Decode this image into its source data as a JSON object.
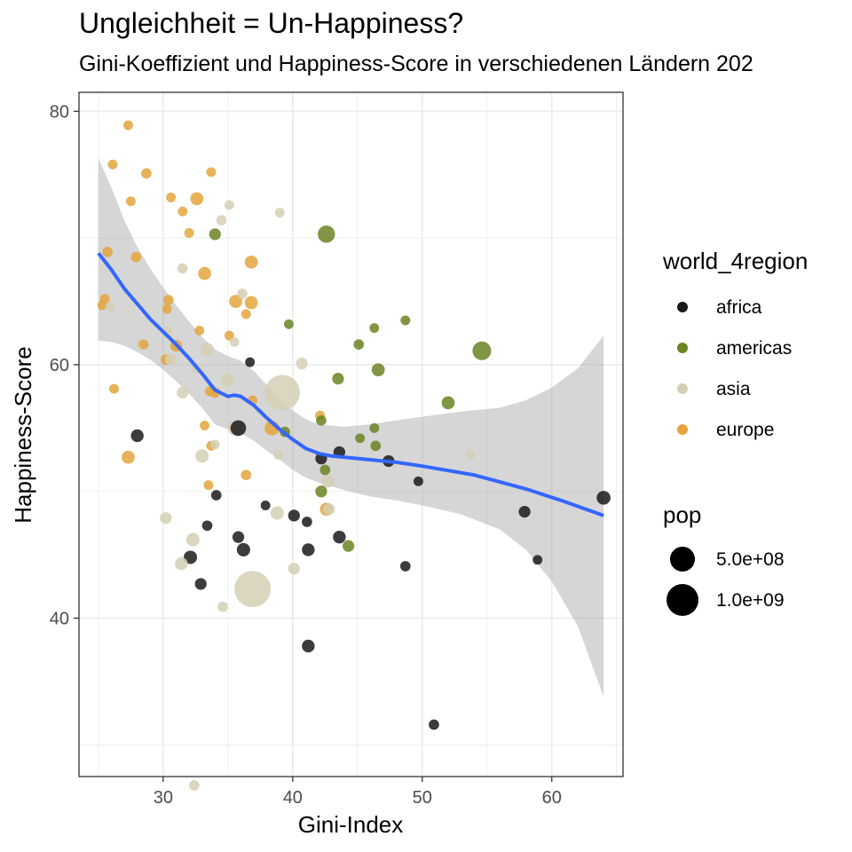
{
  "chart_data": {
    "type": "scatter",
    "title": "Ungleichheit = Un-Happiness?",
    "subtitle": "Gini-Koeffizient und Happiness-Score in verschiedenen Ländern 202",
    "xlabel": "Gini-Index",
    "ylabel": "Happiness-Score",
    "xlim": [
      23.5,
      65.5
    ],
    "ylim": [
      27.5,
      81.5
    ],
    "x_ticks": [
      30,
      40,
      50,
      60
    ],
    "y_ticks": [
      40,
      60,
      80
    ],
    "grid": true,
    "legend_position": "right",
    "color_legend": {
      "title": "world_4region",
      "entries": [
        {
          "label": "africa",
          "color": "#1a1a1a"
        },
        {
          "label": "americas",
          "color": "#6b8423"
        },
        {
          "label": "asia",
          "color": "#d4cfb4"
        },
        {
          "label": "europe",
          "color": "#e3a43c"
        }
      ]
    },
    "size_legend": {
      "title": "pop",
      "entries": [
        {
          "label": "5.0e+08",
          "value": 500000000
        },
        {
          "label": "1.0e+09",
          "value": 1000000000
        }
      ]
    },
    "trend_line": {
      "method": "loess",
      "color": "#3366ff",
      "points": [
        [
          25,
          68.8
        ],
        [
          26,
          67.5
        ],
        [
          27,
          66.0
        ],
        [
          28,
          64.8
        ],
        [
          29,
          63.6
        ],
        [
          30,
          62.6
        ],
        [
          31,
          61.6
        ],
        [
          32,
          60.5
        ],
        [
          33,
          59.3
        ],
        [
          34,
          58.0
        ],
        [
          35,
          57.5
        ],
        [
          35.5,
          57.6
        ],
        [
          36,
          57.5
        ],
        [
          37,
          56.8
        ],
        [
          38,
          55.8
        ],
        [
          39,
          54.9
        ],
        [
          40,
          54.1
        ],
        [
          41,
          53.4
        ],
        [
          42,
          53.0
        ],
        [
          43,
          52.8
        ],
        [
          45,
          52.6
        ],
        [
          48,
          52.3
        ],
        [
          50,
          52.0
        ],
        [
          54,
          51.3
        ],
        [
          58,
          50.2
        ],
        [
          61,
          49.2
        ],
        [
          64,
          48.1
        ]
      ],
      "ci_upper": [
        [
          25,
          76.3
        ],
        [
          26,
          74.0
        ],
        [
          27,
          71.4
        ],
        [
          28,
          69.3
        ],
        [
          29,
          67.6
        ],
        [
          30,
          66.1
        ],
        [
          31,
          64.7
        ],
        [
          32,
          63.4
        ],
        [
          33,
          62.2
        ],
        [
          34,
          61.2
        ],
        [
          35,
          60.7
        ],
        [
          36,
          60.3
        ],
        [
          37,
          59.5
        ],
        [
          38,
          58.4
        ],
        [
          39,
          57.3
        ],
        [
          40,
          56.4
        ],
        [
          41,
          55.7
        ],
        [
          42,
          55.3
        ],
        [
          44,
          55.1
        ],
        [
          46,
          55.3
        ],
        [
          48,
          55.6
        ],
        [
          50,
          55.9
        ],
        [
          53,
          56.3
        ],
        [
          56,
          56.6
        ],
        [
          58,
          57.2
        ],
        [
          60,
          58.2
        ],
        [
          62,
          59.7
        ],
        [
          64,
          62.3
        ]
      ],
      "ci_lower": [
        [
          25,
          61.9
        ],
        [
          26,
          61.8
        ],
        [
          27,
          61.5
        ],
        [
          28,
          61.0
        ],
        [
          29,
          60.4
        ],
        [
          30,
          59.6
        ],
        [
          31,
          58.7
        ],
        [
          32,
          57.7
        ],
        [
          33,
          56.6
        ],
        [
          34,
          55.3
        ],
        [
          35,
          54.9
        ],
        [
          36,
          54.6
        ],
        [
          37,
          54.0
        ],
        [
          38,
          53.2
        ],
        [
          39,
          52.5
        ],
        [
          40,
          51.7
        ],
        [
          41,
          51.1
        ],
        [
          42,
          50.7
        ],
        [
          44,
          50.1
        ],
        [
          46,
          49.6
        ],
        [
          48,
          49.3
        ],
        [
          50,
          48.9
        ],
        [
          53,
          48.2
        ],
        [
          56,
          47.0
        ],
        [
          58,
          45.4
        ],
        [
          60,
          42.9
        ],
        [
          62,
          39.4
        ],
        [
          64,
          33.8
        ]
      ]
    },
    "points": [
      {
        "x": 27.3,
        "y": 78.9,
        "region": "europe",
        "pop": 5000000
      },
      {
        "x": 26.1,
        "y": 75.8,
        "region": "europe",
        "pop": 5000000
      },
      {
        "x": 28.7,
        "y": 75.1,
        "region": "europe",
        "pop": 10000000
      },
      {
        "x": 33.7,
        "y": 75.2,
        "region": "europe",
        "pop": 5000000
      },
      {
        "x": 27.5,
        "y": 72.9,
        "region": "europe",
        "pop": 5000000
      },
      {
        "x": 30.6,
        "y": 73.2,
        "region": "europe",
        "pop": 5000000
      },
      {
        "x": 32.6,
        "y": 73.1,
        "region": "europe",
        "pop": 45000000
      },
      {
        "x": 35.1,
        "y": 72.6,
        "region": "asia",
        "pop": 5000000
      },
      {
        "x": 31.5,
        "y": 72.1,
        "region": "europe",
        "pop": 5000000
      },
      {
        "x": 39.0,
        "y": 72.0,
        "region": "asia",
        "pop": 5000000
      },
      {
        "x": 34.5,
        "y": 71.4,
        "region": "asia",
        "pop": 10000000
      },
      {
        "x": 32.0,
        "y": 70.4,
        "region": "europe",
        "pop": 5000000
      },
      {
        "x": 34.0,
        "y": 70.3,
        "region": "americas",
        "pop": 25000000
      },
      {
        "x": 42.6,
        "y": 70.3,
        "region": "americas",
        "pop": 150000000
      },
      {
        "x": 25.7,
        "y": 68.9,
        "region": "europe",
        "pop": 10000000
      },
      {
        "x": 27.9,
        "y": 68.5,
        "region": "europe",
        "pop": 10000000
      },
      {
        "x": 36.8,
        "y": 68.1,
        "region": "europe",
        "pop": 45000000
      },
      {
        "x": 31.5,
        "y": 67.6,
        "region": "asia",
        "pop": 10000000
      },
      {
        "x": 33.2,
        "y": 67.2,
        "region": "europe",
        "pop": 45000000
      },
      {
        "x": 25.5,
        "y": 65.2,
        "region": "europe",
        "pop": 5000000
      },
      {
        "x": 25.3,
        "y": 64.7,
        "region": "europe",
        "pop": 5000000
      },
      {
        "x": 25.9,
        "y": 64.6,
        "region": "asia",
        "pop": 5000000
      },
      {
        "x": 30.4,
        "y": 65.1,
        "region": "europe",
        "pop": 10000000
      },
      {
        "x": 30.3,
        "y": 64.4,
        "region": "europe",
        "pop": 5000000
      },
      {
        "x": 35.6,
        "y": 65.0,
        "region": "europe",
        "pop": 45000000
      },
      {
        "x": 36.1,
        "y": 65.6,
        "region": "asia",
        "pop": 10000000
      },
      {
        "x": 36.8,
        "y": 64.9,
        "region": "europe",
        "pop": 45000000
      },
      {
        "x": 36.4,
        "y": 64.0,
        "region": "europe",
        "pop": 5000000
      },
      {
        "x": 39.7,
        "y": 63.2,
        "region": "americas",
        "pop": 5000000
      },
      {
        "x": 46.3,
        "y": 62.9,
        "region": "americas",
        "pop": 5000000
      },
      {
        "x": 48.7,
        "y": 63.5,
        "region": "americas",
        "pop": 5000000
      },
      {
        "x": 30.3,
        "y": 62.6,
        "region": "asia",
        "pop": 10000000
      },
      {
        "x": 32.8,
        "y": 62.7,
        "region": "europe",
        "pop": 5000000
      },
      {
        "x": 35.1,
        "y": 62.3,
        "region": "europe",
        "pop": 5000000
      },
      {
        "x": 35.5,
        "y": 61.8,
        "region": "asia",
        "pop": 5000000
      },
      {
        "x": 28.3,
        "y": 61.6,
        "region": "asia",
        "pop": 10000000
      },
      {
        "x": 28.5,
        "y": 61.6,
        "region": "europe",
        "pop": 5000000
      },
      {
        "x": 31.0,
        "y": 61.5,
        "region": "europe",
        "pop": 25000000
      },
      {
        "x": 33.4,
        "y": 61.2,
        "region": "asia",
        "pop": 50000000
      },
      {
        "x": 45.1,
        "y": 61.6,
        "region": "americas",
        "pop": 10000000
      },
      {
        "x": 54.6,
        "y": 61.1,
        "region": "americas",
        "pop": 200000000
      },
      {
        "x": 30.2,
        "y": 60.4,
        "region": "europe",
        "pop": 10000000
      },
      {
        "x": 30.6,
        "y": 60.4,
        "region": "asia",
        "pop": 25000000
      },
      {
        "x": 36.7,
        "y": 60.2,
        "region": "africa",
        "pop": 5000000
      },
      {
        "x": 40.7,
        "y": 60.1,
        "region": "asia",
        "pop": 25000000
      },
      {
        "x": 46.6,
        "y": 59.6,
        "region": "americas",
        "pop": 45000000
      },
      {
        "x": 32.6,
        "y": 59.7,
        "region": "asia",
        "pop": 10000000
      },
      {
        "x": 43.5,
        "y": 58.9,
        "region": "americas",
        "pop": 25000000
      },
      {
        "x": 26.2,
        "y": 58.1,
        "region": "europe",
        "pop": 5000000
      },
      {
        "x": 31.5,
        "y": 57.8,
        "region": "asia",
        "pop": 25000000
      },
      {
        "x": 33.6,
        "y": 57.9,
        "region": "europe",
        "pop": 5000000
      },
      {
        "x": 34.0,
        "y": 57.8,
        "region": "europe",
        "pop": 10000000
      },
      {
        "x": 35.0,
        "y": 58.8,
        "region": "asia",
        "pop": 40000000
      },
      {
        "x": 39.2,
        "y": 57.8,
        "region": "asia",
        "pop": 1300000000
      },
      {
        "x": 36.9,
        "y": 57.2,
        "region": "europe",
        "pop": 5000000
      },
      {
        "x": 42.1,
        "y": 56.0,
        "region": "europe",
        "pop": 5000000
      },
      {
        "x": 42.2,
        "y": 55.6,
        "region": "americas",
        "pop": 10000000
      },
      {
        "x": 52.0,
        "y": 57.0,
        "region": "americas",
        "pop": 45000000
      },
      {
        "x": 33.2,
        "y": 55.2,
        "region": "europe",
        "pop": 5000000
      },
      {
        "x": 35.6,
        "y": 55.0,
        "region": "asia",
        "pop": 100000000
      },
      {
        "x": 35.8,
        "y": 55.0,
        "region": "africa",
        "pop": 100000000
      },
      {
        "x": 38.4,
        "y": 55.0,
        "region": "europe",
        "pop": 80000000
      },
      {
        "x": 39.4,
        "y": 54.7,
        "region": "americas",
        "pop": 10000000
      },
      {
        "x": 28.0,
        "y": 54.4,
        "region": "africa",
        "pop": 40000000
      },
      {
        "x": 33.7,
        "y": 53.6,
        "region": "europe",
        "pop": 5000000
      },
      {
        "x": 34.0,
        "y": 53.7,
        "region": "asia",
        "pop": 5000000
      },
      {
        "x": 45.2,
        "y": 54.2,
        "region": "americas",
        "pop": 5000000
      },
      {
        "x": 46.3,
        "y": 55.0,
        "region": "americas",
        "pop": 5000000
      },
      {
        "x": 46.4,
        "y": 53.6,
        "region": "americas",
        "pop": 10000000
      },
      {
        "x": 43.6,
        "y": 53.1,
        "region": "africa",
        "pop": 25000000
      },
      {
        "x": 53.7,
        "y": 52.9,
        "region": "asia",
        "pop": 5000000
      },
      {
        "x": 27.3,
        "y": 52.7,
        "region": "europe",
        "pop": 45000000
      },
      {
        "x": 33.0,
        "y": 52.8,
        "region": "asia",
        "pop": 50000000
      },
      {
        "x": 38.9,
        "y": 52.9,
        "region": "asia",
        "pop": 5000000
      },
      {
        "x": 42.2,
        "y": 52.6,
        "region": "africa",
        "pop": 25000000
      },
      {
        "x": 47.4,
        "y": 52.4,
        "region": "africa",
        "pop": 25000000
      },
      {
        "x": 42.5,
        "y": 51.7,
        "region": "americas",
        "pop": 10000000
      },
      {
        "x": 36.4,
        "y": 51.3,
        "region": "europe",
        "pop": 10000000
      },
      {
        "x": 42.7,
        "y": 50.8,
        "region": "asia",
        "pop": 40000000
      },
      {
        "x": 49.7,
        "y": 50.8,
        "region": "africa",
        "pop": 5000000
      },
      {
        "x": 33.5,
        "y": 50.5,
        "region": "europe",
        "pop": 5000000
      },
      {
        "x": 34.1,
        "y": 49.7,
        "region": "africa",
        "pop": 10000000
      },
      {
        "x": 42.2,
        "y": 50.0,
        "region": "americas",
        "pop": 25000000
      },
      {
        "x": 64.0,
        "y": 49.5,
        "region": "africa",
        "pop": 60000000
      },
      {
        "x": 37.9,
        "y": 48.9,
        "region": "africa",
        "pop": 5000000
      },
      {
        "x": 42.6,
        "y": 48.6,
        "region": "europe",
        "pop": 45000000
      },
      {
        "x": 42.8,
        "y": 48.6,
        "region": "asia",
        "pop": 25000000
      },
      {
        "x": 38.8,
        "y": 48.3,
        "region": "asia",
        "pop": 50000000
      },
      {
        "x": 30.2,
        "y": 47.9,
        "region": "asia",
        "pop": 25000000
      },
      {
        "x": 40.1,
        "y": 48.1,
        "region": "africa",
        "pop": 25000000
      },
      {
        "x": 41.1,
        "y": 47.6,
        "region": "africa",
        "pop": 10000000
      },
      {
        "x": 57.9,
        "y": 48.4,
        "region": "africa",
        "pop": 25000000
      },
      {
        "x": 33.4,
        "y": 47.3,
        "region": "africa",
        "pop": 10000000
      },
      {
        "x": 32.3,
        "y": 46.2,
        "region": "asia",
        "pop": 50000000
      },
      {
        "x": 35.8,
        "y": 46.4,
        "region": "africa",
        "pop": 25000000
      },
      {
        "x": 43.6,
        "y": 46.4,
        "region": "africa",
        "pop": 40000000
      },
      {
        "x": 36.2,
        "y": 45.4,
        "region": "africa",
        "pop": 50000000
      },
      {
        "x": 41.2,
        "y": 45.4,
        "region": "africa",
        "pop": 40000000
      },
      {
        "x": 44.3,
        "y": 45.7,
        "region": "americas",
        "pop": 25000000
      },
      {
        "x": 32.1,
        "y": 44.8,
        "region": "africa",
        "pop": 50000000
      },
      {
        "x": 31.4,
        "y": 44.3,
        "region": "asia",
        "pop": 40000000
      },
      {
        "x": 58.9,
        "y": 44.6,
        "region": "africa",
        "pop": 5000000
      },
      {
        "x": 48.7,
        "y": 44.1,
        "region": "africa",
        "pop": 10000000
      },
      {
        "x": 40.1,
        "y": 43.9,
        "region": "asia",
        "pop": 25000000
      },
      {
        "x": 32.9,
        "y": 42.7,
        "region": "africa",
        "pop": 25000000
      },
      {
        "x": 36.9,
        "y": 42.3,
        "region": "asia",
        "pop": 1400000000
      },
      {
        "x": 34.6,
        "y": 40.9,
        "region": "asia",
        "pop": 10000000
      },
      {
        "x": 41.2,
        "y": 37.8,
        "region": "africa",
        "pop": 40000000
      },
      {
        "x": 50.9,
        "y": 31.6,
        "region": "africa",
        "pop": 10000000
      },
      {
        "x": 32.4,
        "y": 26.8,
        "region": "asia",
        "pop": 10000000
      }
    ]
  }
}
